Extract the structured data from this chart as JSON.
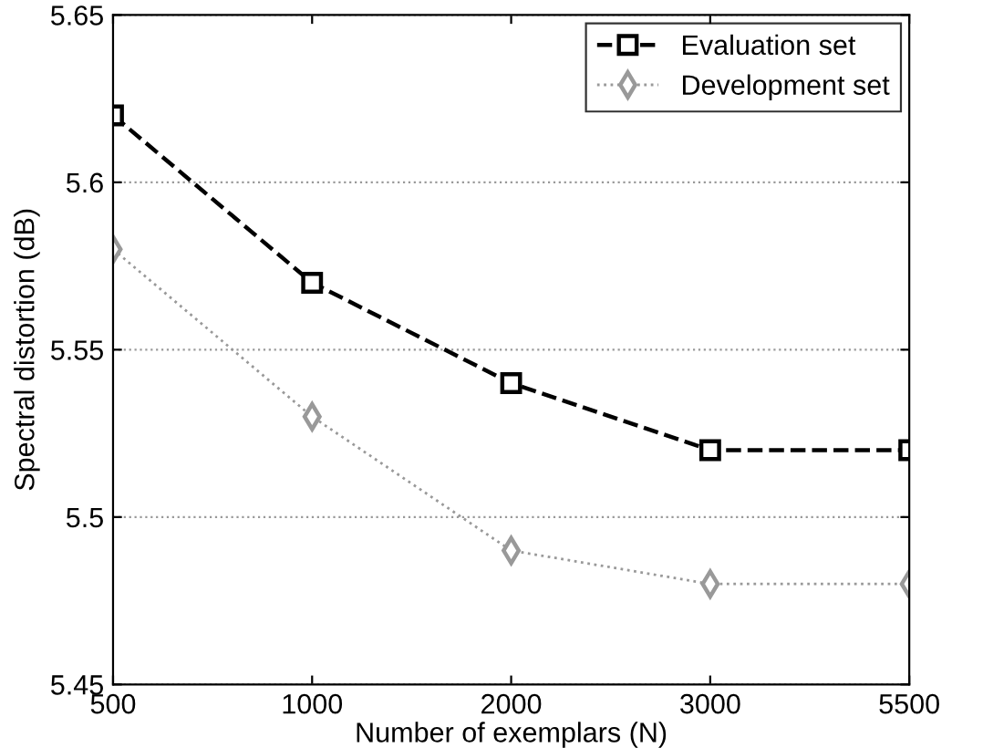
{
  "chart_data": {
    "type": "line",
    "xlabel": "Number of exemplars (N)",
    "ylabel": "Spectral distortion (dB)",
    "categories": [
      "500",
      "1000",
      "2000",
      "3000",
      "5500"
    ],
    "series": [
      {
        "name": "Evaluation set",
        "color": "#000000",
        "values": [
          5.62,
          5.57,
          5.54,
          5.52,
          5.52
        ],
        "marker": "square",
        "line_style": "dashed"
      },
      {
        "name": "Development set",
        "color": "#999999",
        "values": [
          5.58,
          5.53,
          5.49,
          5.48,
          5.48
        ],
        "marker": "diamond",
        "line_style": "dotted"
      }
    ],
    "ylim": [
      5.45,
      5.65
    ],
    "yticks": [
      5.45,
      5.5,
      5.55,
      5.6,
      5.65
    ],
    "grid": "y",
    "legend": "top right"
  }
}
